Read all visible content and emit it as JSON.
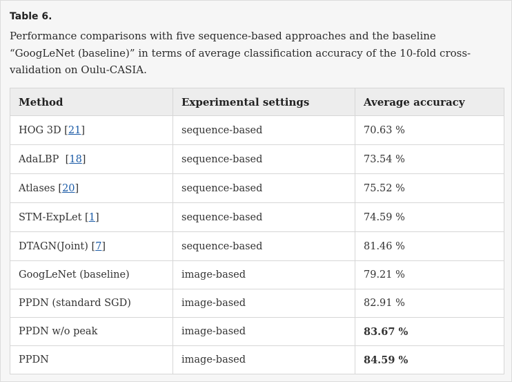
{
  "label": "Table 6.",
  "caption": "Performance comparisons with five sequence-based approaches and the baseline “GoogLeNet (baseline)” in terms of average classification accuracy of the 10-fold cross-validation on Oulu-CASIA.",
  "headers": [
    "Method",
    "Experimental settings",
    "Average accuracy"
  ],
  "rows": [
    {
      "method": "HOG 3D",
      "ref": "21",
      "pre": " [",
      "settings": "sequence-based",
      "accuracy": "70.63 %",
      "bold": false
    },
    {
      "method": "AdaLBP",
      "ref": "18",
      "pre": "  [",
      "settings": "sequence-based",
      "accuracy": "73.54 %",
      "bold": false
    },
    {
      "method": "Atlases",
      "ref": "20",
      "pre": " [",
      "settings": "sequence-based",
      "accuracy": "75.52 %",
      "bold": false
    },
    {
      "method": "STM-ExpLet",
      "ref": "1",
      "pre": " [",
      "settings": "sequence-based",
      "accuracy": "74.59 %",
      "bold": false
    },
    {
      "method": "DTAGN(Joint)",
      "ref": "7",
      "pre": " [",
      "settings": "sequence-based",
      "accuracy": "81.46 %",
      "bold": false
    },
    {
      "method": "GoogLeNet (baseline)",
      "ref": "",
      "pre": "",
      "settings": "image-based",
      "accuracy": "79.21 %",
      "bold": false
    },
    {
      "method": "PPDN (standard SGD)",
      "ref": "",
      "pre": "",
      "settings": "image-based",
      "accuracy": "82.91 %",
      "bold": false
    },
    {
      "method": "PPDN w/o peak",
      "ref": "",
      "pre": "",
      "settings": "image-based",
      "accuracy": "83.67 %",
      "bold": true
    },
    {
      "method": "PPDN",
      "ref": "",
      "pre": "",
      "settings": "image-based",
      "accuracy": "84.59 %",
      "bold": true
    }
  ]
}
